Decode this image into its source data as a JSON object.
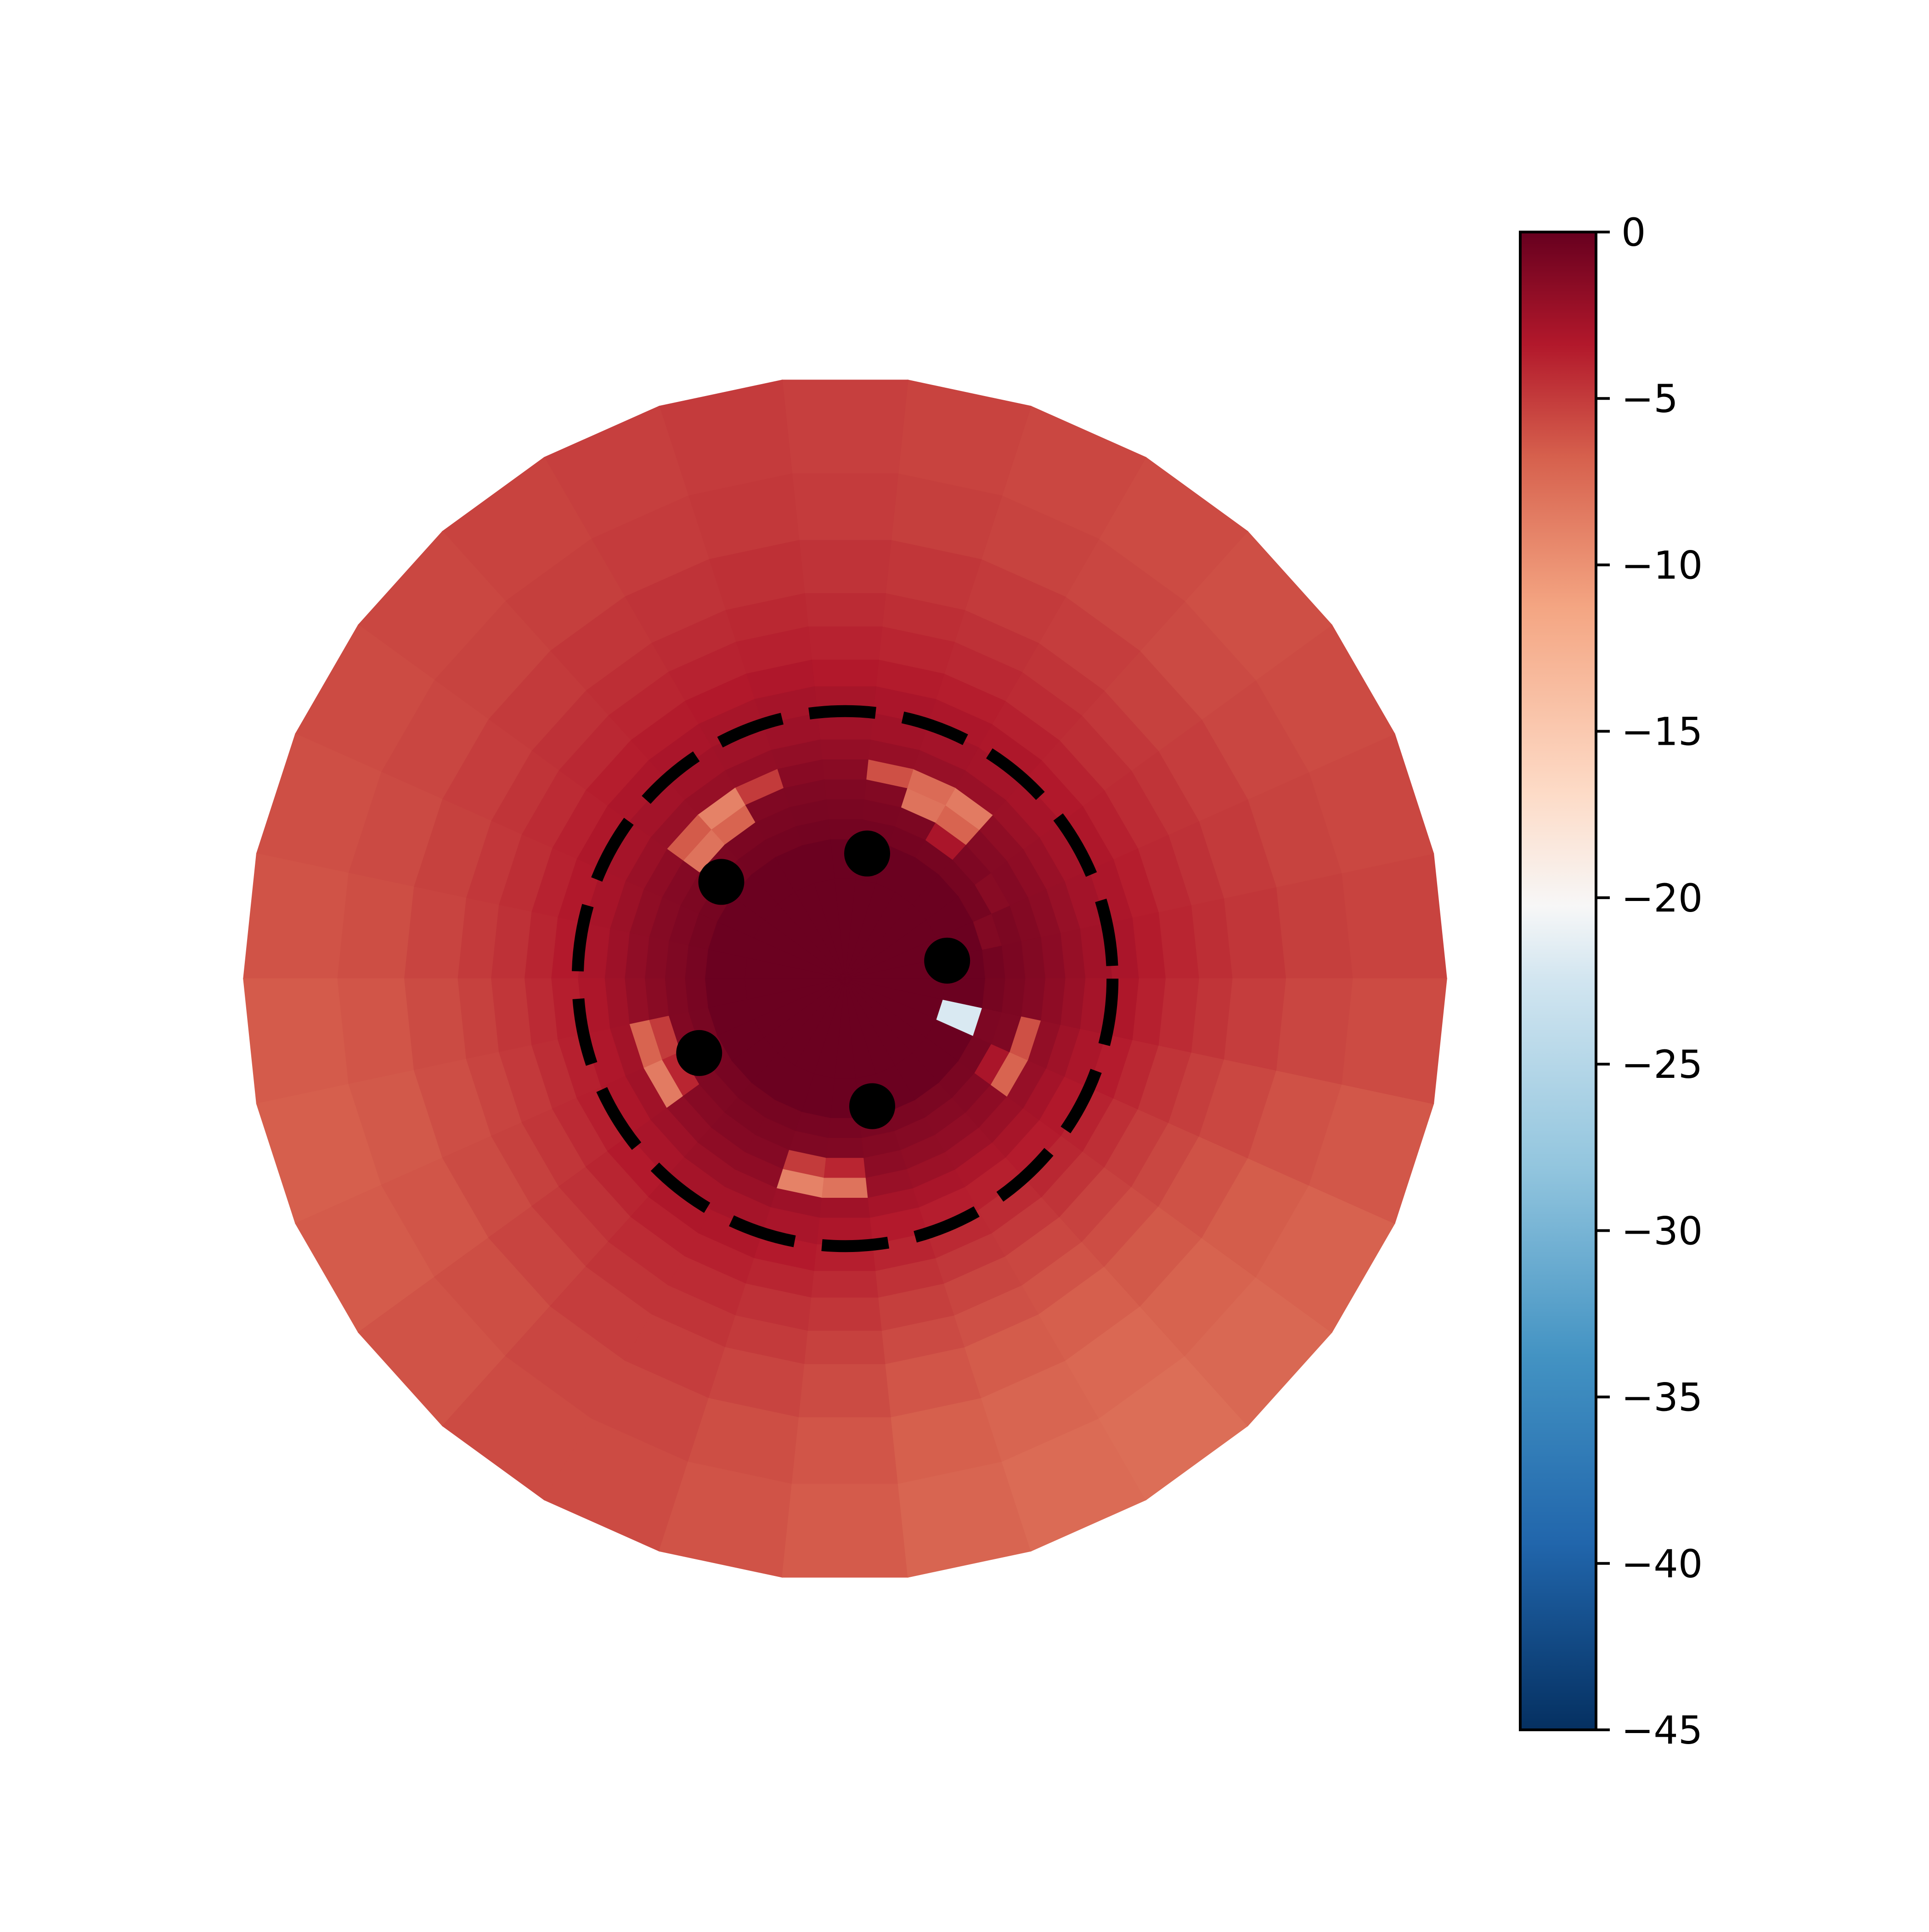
{
  "chart_data": {
    "type": "heatmap",
    "projection": "polar",
    "title": "",
    "xlabel": "",
    "ylabel": "",
    "colorbar": {
      "min": -45,
      "max": 0,
      "ticks": [
        0,
        -5,
        -10,
        -15,
        -20,
        -25,
        -30,
        -35,
        -40,
        -45
      ],
      "tick_labels": [
        "0",
        "−5",
        "−10",
        "−15",
        "−20",
        "−25",
        "−30",
        "−35",
        "−40",
        "−45"
      ],
      "colormap": "RdBu_r",
      "placement": "right"
    },
    "grid": false,
    "n_sectors": 30,
    "radial_rings": [
      0,
      1.5,
      2.1,
      2.4,
      2.7,
      3.0,
      3.3,
      3.6,
      4.0,
      4.4,
      4.8,
      5.3,
      5.8,
      6.6,
      7.6,
      9.0
    ],
    "base_ring_values": [
      -0.2,
      -0.2,
      -0.6,
      -0.9,
      -1.2,
      -1.6,
      -2.1,
      -2.6,
      -3.0,
      -3.5,
      -4.0,
      -4.4,
      -4.8,
      -5.2,
      -5.4
    ],
    "base_sector_offsets": [
      0.0,
      0.05,
      0.1,
      0.15,
      0.1,
      0.05,
      0.0,
      -0.05,
      -0.1,
      -0.05,
      0.0,
      0.05,
      0.1,
      0.15,
      0.2,
      0.3,
      0.35,
      0.3,
      0.2,
      0.1,
      0.1,
      0.2,
      0.3,
      0.45,
      0.55,
      0.6,
      0.5,
      0.4,
      0.25,
      0.1
    ],
    "anomalies": [
      {
        "sector": 4,
        "ring": 4,
        "value": -7.0
      },
      {
        "sector": 4,
        "ring": 5,
        "value": -8.5
      },
      {
        "sector": 5,
        "ring": 4,
        "value": -8.0
      },
      {
        "sector": 5,
        "ring": 5,
        "value": -7.5
      },
      {
        "sector": 6,
        "ring": 5,
        "value": -6.0
      },
      {
        "sector": 4,
        "ring": 3,
        "value": -3.0
      },
      {
        "sector": 10,
        "ring": 4,
        "value": -7.0
      },
      {
        "sector": 10,
        "ring": 5,
        "value": -9.0
      },
      {
        "sector": 11,
        "ring": 4,
        "value": -8.0
      },
      {
        "sector": 11,
        "ring": 5,
        "value": -6.5
      },
      {
        "sector": 9,
        "ring": 5,
        "value": -5.0
      },
      {
        "sector": 16,
        "ring": 4,
        "value": -5.0
      },
      {
        "sector": 16,
        "ring": 5,
        "value": -7.0
      },
      {
        "sector": 17,
        "ring": 5,
        "value": -8.5
      },
      {
        "sector": 17,
        "ring": 4,
        "value": -4.0
      },
      {
        "sector": 21,
        "ring": 4,
        "value": -5.0
      },
      {
        "sector": 21,
        "ring": 5,
        "value": -9.0
      },
      {
        "sector": 22,
        "ring": 5,
        "value": -8.0
      },
      {
        "sector": 22,
        "ring": 4,
        "value": -4.0
      },
      {
        "sector": 27,
        "ring": 4,
        "value": -7.0
      },
      {
        "sector": 28,
        "ring": 4,
        "value": -6.0
      },
      {
        "sector": 27,
        "ring": 3,
        "value": -3.0
      },
      {
        "sector": 28,
        "ring": 2,
        "value": -1.0
      },
      {
        "sector": 28,
        "ring": 1,
        "value": -22.0
      },
      {
        "sector": 1,
        "ring": 2,
        "value": -1.2
      },
      {
        "sector": 2,
        "ring": 3,
        "value": -1.5
      }
    ],
    "reference_circle": {
      "radius": 4.0,
      "style": "dashed",
      "color": "#000000"
    },
    "points": [
      {
        "r": 1.55,
        "theta_deg": 10,
        "color": "#000000"
      },
      {
        "r": 1.9,
        "theta_deg": 80,
        "color": "#000000"
      },
      {
        "r": 2.35,
        "theta_deg": 142,
        "color": "#000000"
      },
      {
        "r": 2.45,
        "theta_deg": 207,
        "color": "#000000"
      },
      {
        "r": 1.95,
        "theta_deg": 282,
        "color": "#000000"
      }
    ]
  }
}
